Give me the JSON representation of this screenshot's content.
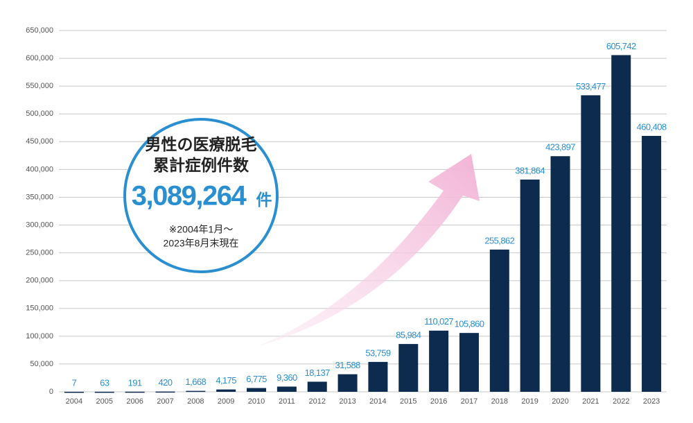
{
  "chart_data": {
    "type": "bar",
    "categories": [
      "2004",
      "2005",
      "2006",
      "2007",
      "2008",
      "2009",
      "2010",
      "2011",
      "2012",
      "2013",
      "2014",
      "2015",
      "2016",
      "2017",
      "2018",
      "2019",
      "2020",
      "2021",
      "2022",
      "2023"
    ],
    "values": [
      7,
      63,
      191,
      420,
      1668,
      4175,
      6775,
      9360,
      18137,
      31588,
      53759,
      85984,
      110027,
      105860,
      255862,
      381864,
      423897,
      533477,
      605742,
      460408
    ],
    "value_labels": [
      "7",
      "63",
      "191",
      "420",
      "1,668",
      "4,175",
      "6,775",
      "9,360",
      "18,137",
      "31,588",
      "53,759",
      "85,984",
      "110,027",
      "105,860",
      "255,862",
      "381,864",
      "423,897",
      "533,477",
      "605,742",
      "460,408"
    ],
    "color": "#0c2b4e",
    "label_color": "#2a8fd0",
    "ylim": [
      0,
      650000
    ],
    "yticks": [
      0,
      {
        "value": 50000,
        "label": "50,000"
      },
      {
        "value": 100000,
        "label": "100,000"
      },
      {
        "value": 150000,
        "label": "150,000"
      },
      {
        "value": 200000,
        "label": "200,000"
      },
      {
        "value": 250000,
        "label": "250,000"
      },
      {
        "value": 300000,
        "label": "300,000"
      },
      {
        "value": 350000,
        "label": "350,000"
      },
      {
        "value": 400000,
        "label": "400,000"
      },
      {
        "value": 450000,
        "label": "450,000"
      },
      {
        "value": 500000,
        "label": "500,000"
      },
      {
        "value": 550000,
        "label": "550,000"
      },
      {
        "value": 600000,
        "label": "600,000"
      },
      {
        "value": 650000,
        "label": "650,000"
      }
    ],
    "grid": true,
    "annotation": {
      "heading": [
        "男性の医療脱毛",
        "累計症例件数"
      ],
      "total": "3,089,264",
      "unit": "件",
      "note": [
        "※2004年1月～",
        "2023年8月末現在"
      ]
    }
  }
}
